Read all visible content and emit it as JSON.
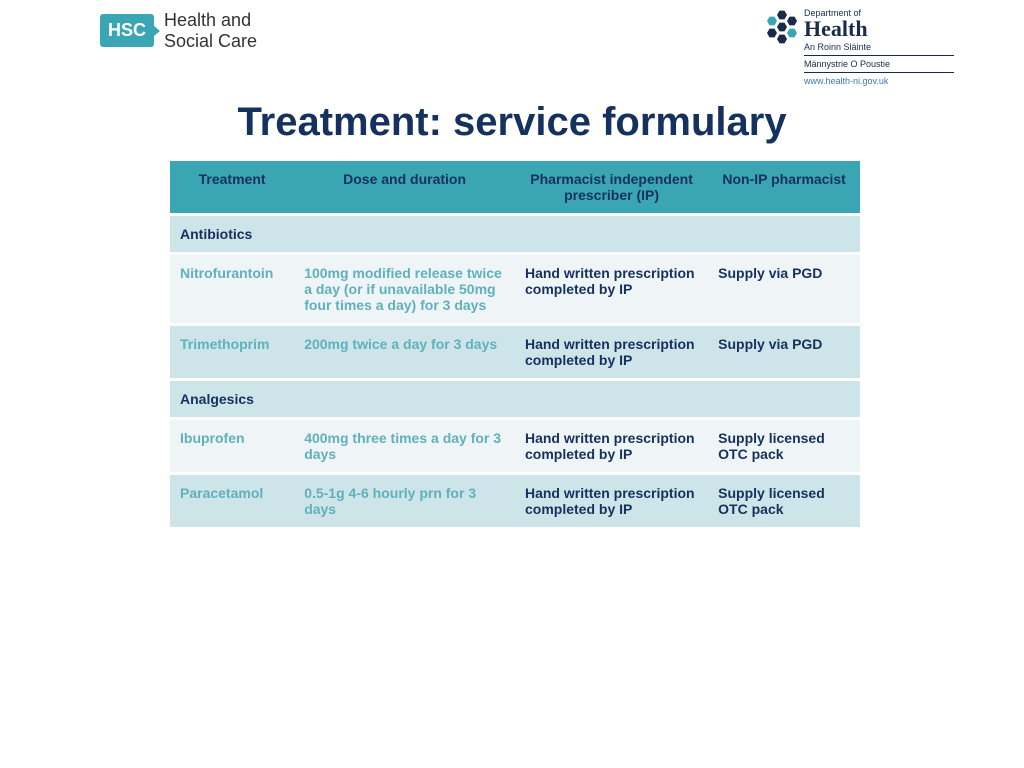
{
  "logo_left": {
    "badge": "HSC",
    "line1": "Health and",
    "line2": "Social Care"
  },
  "logo_right": {
    "dept_of": "Department of",
    "health": "Health",
    "sub1": "An Roinn Sláinte",
    "sub2": "Männystrie O Poustie",
    "url": "www.health-ni.gov.uk"
  },
  "title": "Treatment: service formulary",
  "table": {
    "columns": [
      "Treatment",
      "Dose and duration",
      "Pharmacist independent prescriber (IP)",
      "Non-IP pharmacist"
    ],
    "col_widths_pct": [
      18,
      32,
      28,
      22
    ],
    "header_bg": "#3ba6b3",
    "header_text_color": "#15315e",
    "band_a_bg": "#eff4f6",
    "band_b_bg": "#cde4e9",
    "cat_bg": "#cde4e9",
    "name_dose_color": "#5fb1bb",
    "ip_nonip_color": "#15315e",
    "fontsize": 14,
    "rows": [
      {
        "type": "category",
        "label": "Antibiotics"
      },
      {
        "type": "data",
        "band": "a",
        "treatment": "Nitrofurantoin",
        "dose": "100mg modified release twice a day (or if unavailable 50mg four times a day) for 3 days",
        "ip": "Hand written prescription completed by IP",
        "nonip": "Supply via PGD"
      },
      {
        "type": "data",
        "band": "b",
        "treatment": "Trimethoprim",
        "dose": "200mg twice a day for 3 days",
        "ip": "Hand written prescription completed by IP",
        "nonip": "Supply via PGD"
      },
      {
        "type": "category",
        "label": "Analgesics"
      },
      {
        "type": "data",
        "band": "a",
        "treatment": "Ibuprofen",
        "dose": "400mg three times a day for 3 days",
        "ip": "Hand written prescription completed by IP",
        "nonip": "Supply licensed OTC pack"
      },
      {
        "type": "data",
        "band": "b",
        "treatment": "Paracetamol",
        "dose": "0.5-1g 4-6 hourly prn for 3 days",
        "ip": "Hand written prescription completed by IP",
        "nonip": "Supply licensed OTC pack"
      }
    ]
  },
  "colors": {
    "teal": "#3ba6b3",
    "navy": "#15315e",
    "light_teal_text": "#5fb1bb",
    "row_light": "#eff4f6",
    "row_mid": "#cde4e9",
    "background": "#ffffff"
  }
}
